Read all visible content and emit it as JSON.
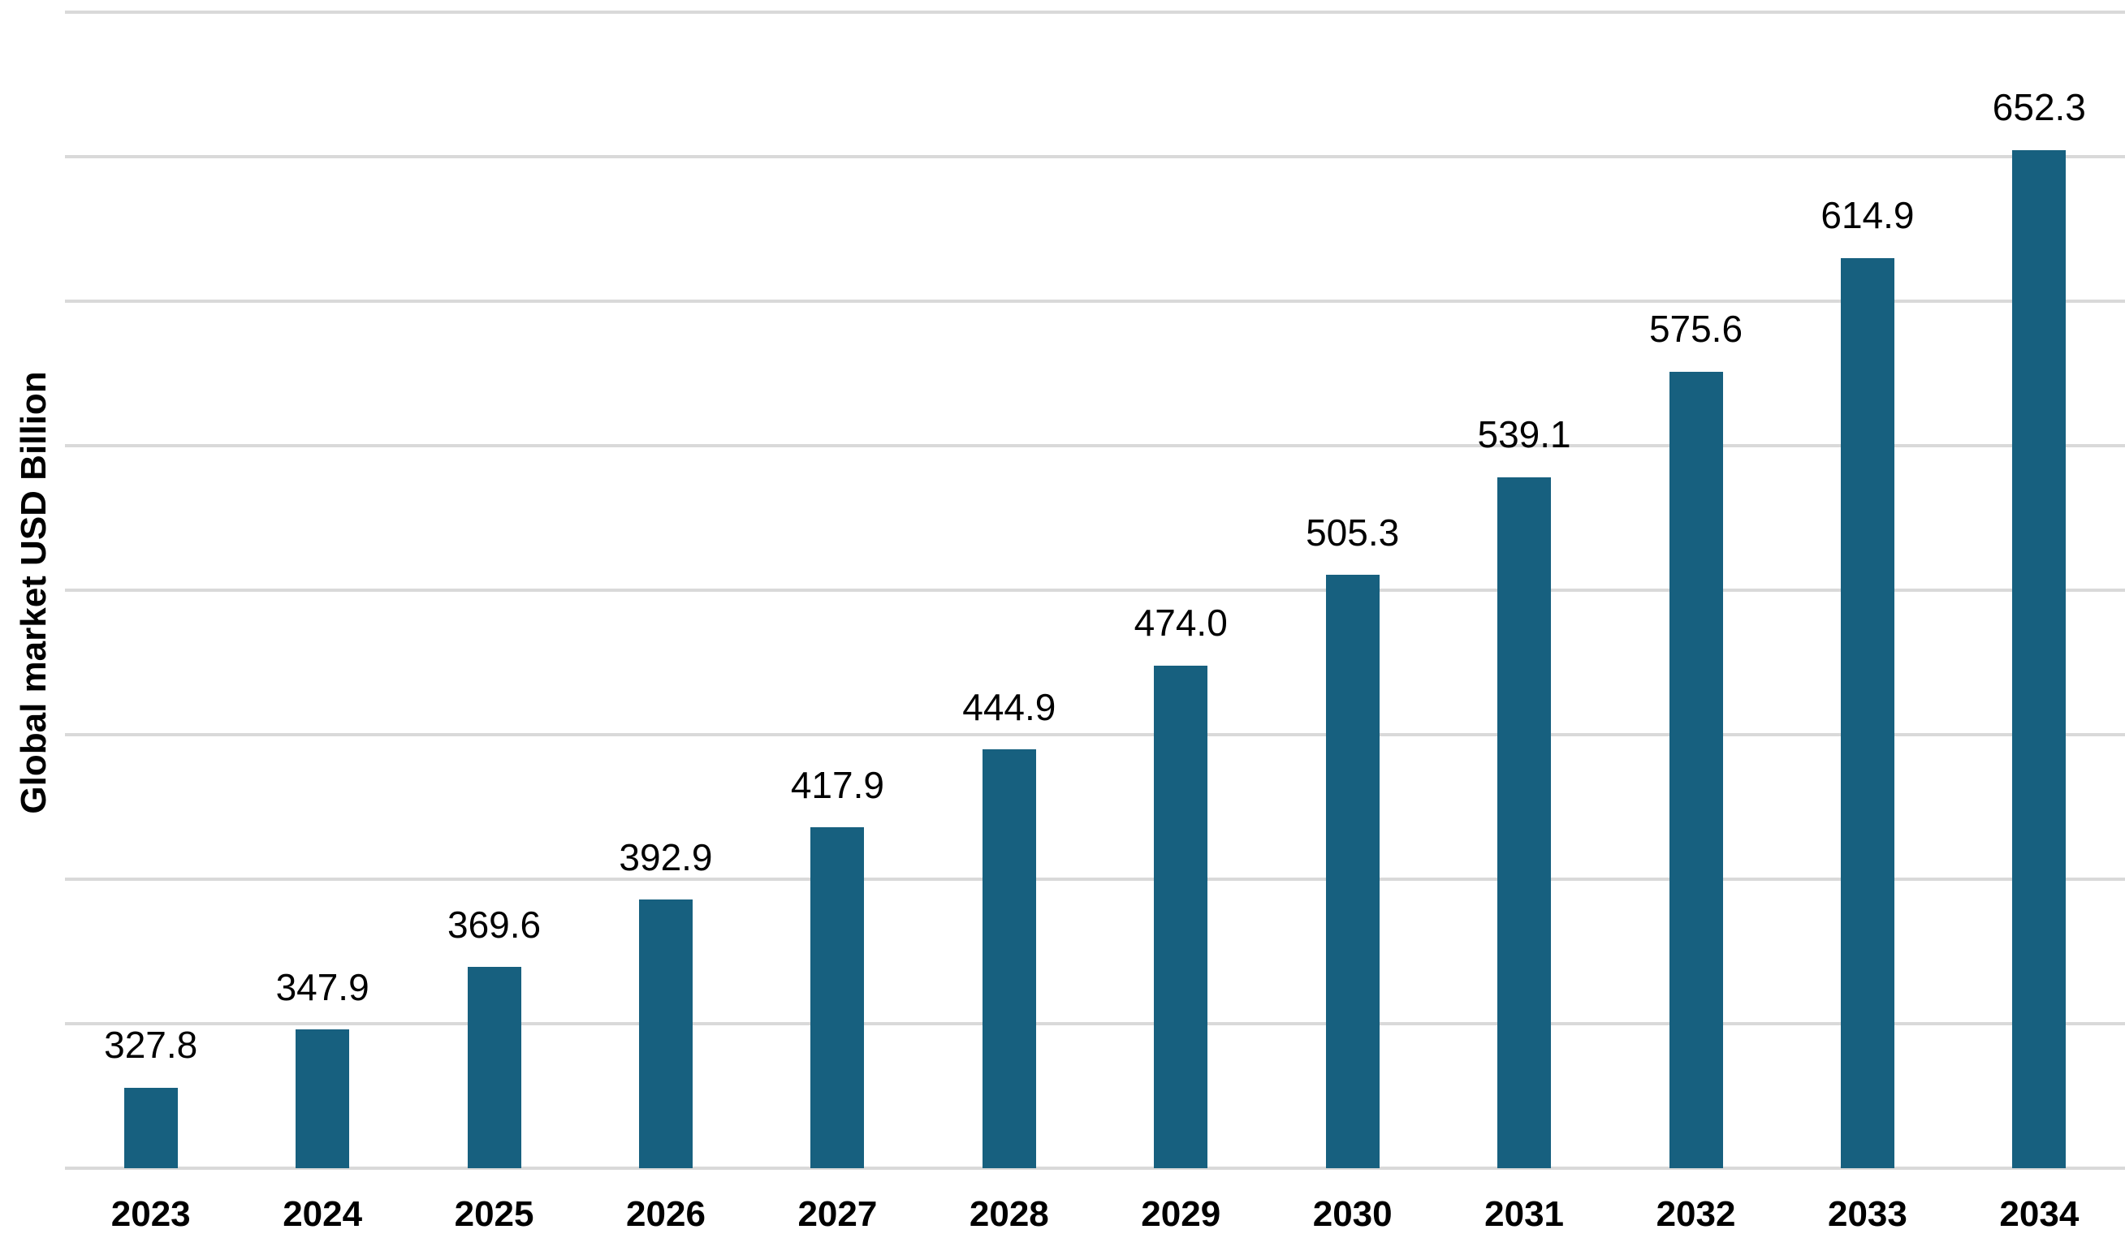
{
  "chart_data": {
    "type": "bar",
    "title": "",
    "xlabel": "",
    "ylabel": "Global market USD Billion",
    "categories": [
      "2023",
      "2024",
      "2025",
      "2026",
      "2027",
      "2028",
      "2029",
      "2030",
      "2031",
      "2032",
      "2033",
      "2034"
    ],
    "values": [
      327.8,
      347.9,
      369.6,
      392.9,
      417.9,
      444.9,
      474.0,
      505.3,
      539.1,
      575.6,
      614.9,
      652.3
    ],
    "value_labels": [
      "327.8",
      "347.9",
      "369.6",
      "392.9",
      "417.9",
      "444.9",
      "474.0",
      "505.3",
      "539.1",
      "575.6",
      "614.9",
      "652.3"
    ],
    "ylim": [
      300,
      700
    ],
    "gridline_step": 50,
    "grid": "horizontal",
    "legend_position": "none",
    "bar_color": "#17607F",
    "gridline_color": "#D9D9D9",
    "label_color": "#000000",
    "background_color": "#FFFFFF"
  }
}
